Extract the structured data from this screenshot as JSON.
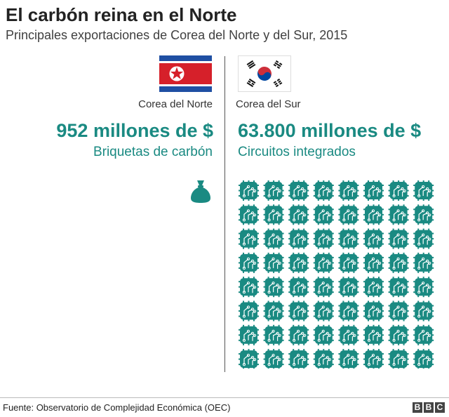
{
  "header": {
    "title": "El carbón reina en el Norte",
    "subtitle": "Principales exportaciones de Corea del Norte y del Sur, 2015"
  },
  "north": {
    "country": "Corea del Norte",
    "value_label": "952 millones de $",
    "product": "Briquetas de carbón",
    "icon": "money-bag-icon",
    "units": 1
  },
  "south": {
    "country": "Corea del Sur",
    "value_label": "63.800 millones de $",
    "product": "Circuitos integrados",
    "icon": "circuit-chip-icon",
    "units": 67
  },
  "footer": {
    "source": "Fuente: Observatorio de Complejidad Económica (OEC)",
    "logo_letters": [
      "B",
      "B",
      "C"
    ]
  },
  "colors": {
    "accent": "#1a8a82",
    "nk_red": "#d6202a",
    "nk_blue": "#1f4fa3",
    "sk_red": "#cd2e3a",
    "sk_blue": "#0047a0"
  },
  "chart_data": {
    "type": "pictogram",
    "title": "El carbón reina en el Norte",
    "subtitle": "Principales exportaciones de Corea del Norte y del Sur, 2015",
    "categories": [
      "Corea del Norte",
      "Corea del Sur"
    ],
    "products": [
      "Briquetas de carbón",
      "Circuitos integrados"
    ],
    "values": [
      952,
      63800
    ],
    "icon_counts": [
      1,
      67
    ]
  }
}
